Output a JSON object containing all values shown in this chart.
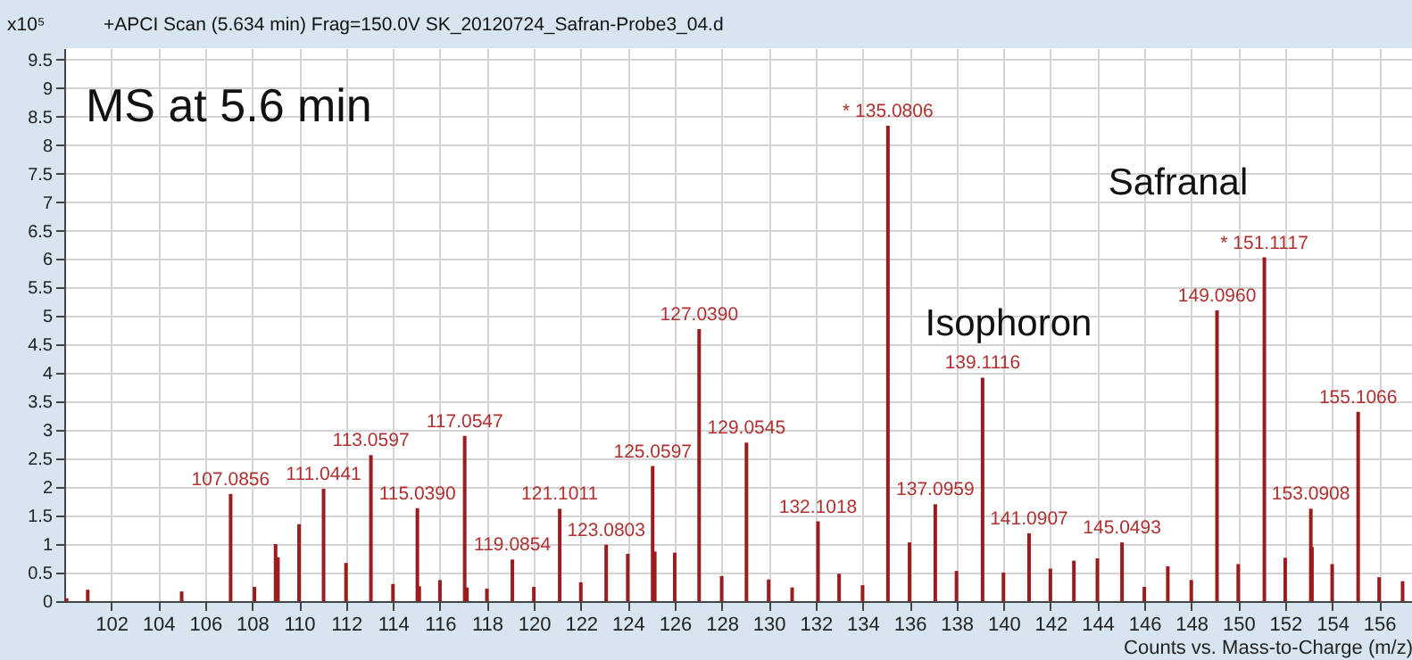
{
  "chart_data": {
    "type": "bar",
    "title": "+APCI Scan (5.634 min) Frag=150.0V SK_20120724_Safran-Probe3_04.d",
    "xlabel": "Counts vs. Mass-to-Charge (m/z)",
    "ylabel": "x10⁵",
    "annotations": [
      "MS at 5.6 min",
      "Isophoron",
      "Safranal",
      {
        "text": "107.0856",
        "x": 107.0856,
        "y": 1.88
      },
      {
        "text": "111.0441",
        "x": 111.0441,
        "y": 1.97
      },
      {
        "text": "113.0597",
        "x": 113.0597,
        "y": 2.56
      },
      {
        "text": "115.0390",
        "x": 115.039,
        "y": 1.63
      },
      {
        "text": "117.0547",
        "x": 117.0547,
        "y": 2.9
      },
      {
        "text": "119.0854",
        "x": 119.0854,
        "y": 0.73
      },
      {
        "text": "121.1011",
        "x": 121.1011,
        "y": 1.62
      },
      {
        "text": "123.0803",
        "x": 123.0803,
        "y": 0.99
      },
      {
        "text": "125.0597",
        "x": 125.0597,
        "y": 2.37
      },
      {
        "text": "127.0390",
        "x": 127.039,
        "y": 4.77
      },
      {
        "text": "129.0545",
        "x": 129.0545,
        "y": 2.78
      },
      {
        "text": "132.1018",
        "x": 132.1018,
        "y": 1.4
      },
      {
        "text": "* 135.0806",
        "x": 135.0806,
        "y": 8.34
      },
      {
        "text": "137.0959",
        "x": 137.0959,
        "y": 1.7
      },
      {
        "text": "139.1116",
        "x": 139.1116,
        "y": 3.92
      },
      {
        "text": "141.0907",
        "x": 141.0907,
        "y": 1.19
      },
      {
        "text": "145.0493",
        "x": 145.0493,
        "y": 1.03
      },
      {
        "text": "149.0960",
        "x": 149.096,
        "y": 5.1
      },
      {
        "text": "* 151.1117",
        "x": 151.1117,
        "y": 6.03
      },
      {
        "text": "153.0908",
        "x": 153.0908,
        "y": 1.62
      },
      {
        "text": "155.1066",
        "x": 155.1066,
        "y": 3.32
      }
    ],
    "xlim": [
      100,
      157.4
    ],
    "ylim": [
      0,
      9.7
    ],
    "xticks": [
      102,
      104,
      106,
      108,
      110,
      112,
      114,
      116,
      118,
      120,
      122,
      124,
      126,
      128,
      130,
      132,
      134,
      136,
      138,
      140,
      142,
      144,
      146,
      148,
      150,
      152,
      154,
      156
    ],
    "yticks": [
      0,
      0.5,
      1,
      1.5,
      2,
      2.5,
      3,
      3.5,
      4,
      4.5,
      5,
      5.5,
      6,
      6.5,
      7,
      7.5,
      8,
      8.5,
      9,
      9.5
    ],
    "grid": true,
    "x": [
      100.1,
      101.0,
      105.0,
      107.0856,
      108.1,
      109.0,
      109.1,
      110.0,
      111.0441,
      112.0,
      113.0597,
      114.0,
      115.039,
      115.12,
      116.0,
      117.0547,
      117.15,
      118.0,
      119.0854,
      120.0,
      121.1011,
      122.0,
      123.0803,
      124.0,
      125.0597,
      125.15,
      126.0,
      127.039,
      128.0,
      129.0545,
      130.0,
      131.0,
      132.1018,
      133.0,
      134.0,
      135.0806,
      136.0,
      137.0959,
      138.0,
      139.05,
      139.1116,
      140.0,
      141.0907,
      142.0,
      143.0,
      144.0,
      145.0493,
      146.0,
      147.0,
      148.0,
      149.04,
      149.096,
      150.0,
      151.04,
      151.1117,
      152.0,
      153.0908,
      153.14,
      154.0,
      155.04,
      155.1066,
      156.0,
      157.0
    ],
    "series": [
      {
        "color": "#9b1c1c",
        "values": [
          0.05,
          0.2,
          0.17,
          1.88,
          0.25,
          1.0,
          0.77,
          1.35,
          1.97,
          0.67,
          2.56,
          0.3,
          1.63,
          0.26,
          0.37,
          2.9,
          0.24,
          0.22,
          0.73,
          0.25,
          1.62,
          0.33,
          0.99,
          0.83,
          2.37,
          0.87,
          0.85,
          4.77,
          0.44,
          2.78,
          0.38,
          0.24,
          1.4,
          0.48,
          0.28,
          8.34,
          1.03,
          1.7,
          0.53,
          null,
          3.92,
          0.5,
          1.19,
          0.57,
          0.71,
          0.75,
          1.03,
          0.25,
          0.61,
          0.37,
          null,
          5.1,
          0.65,
          null,
          6.03,
          0.76,
          1.62,
          0.95,
          0.65,
          null,
          3.32,
          0.42,
          0.35
        ]
      }
    ]
  }
}
